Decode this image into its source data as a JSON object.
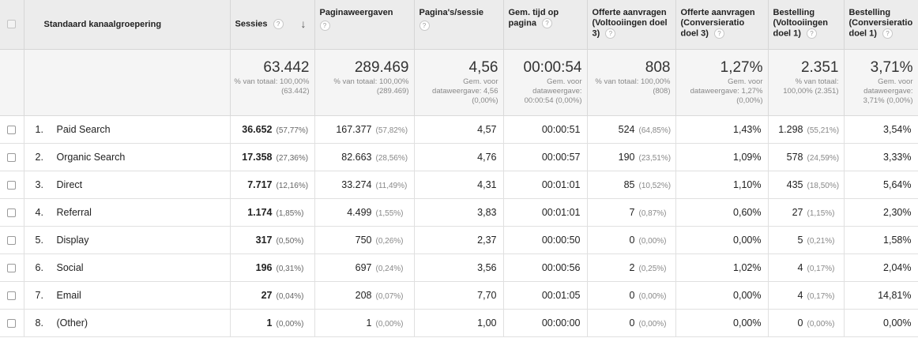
{
  "columns": {
    "name": "Standaard kanaalgroepering",
    "sessies": "Sessies",
    "paginaweergaven": "Paginaweergaven",
    "paginas_sessie": "Pagina's/sessie",
    "tijd": "Gem. tijd op pagina",
    "offerte_voltooiingen": "Offerte aanvragen (Voltooiingen doel 3)",
    "offerte_conversie": "Offerte aanvragen (Conversieratio doel 3)",
    "bestelling_voltooiingen": "Bestelling (Voltooiingen doel 1)",
    "bestelling_conversie": "Bestelling (Conversieratio doel 1)"
  },
  "help_icon": "?",
  "sort_icon": "↓",
  "totals": {
    "sessies": {
      "value": "63.442",
      "sub": "% van totaal: 100,00% (63.442)"
    },
    "paginaweergaven": {
      "value": "289.469",
      "sub": "% van totaal: 100,00% (289.469)"
    },
    "paginas_sessie": {
      "value": "4,56",
      "sub": "Gem. voor dataweergave: 4,56 (0,00%)"
    },
    "tijd": {
      "value": "00:00:54",
      "sub": "Gem. voor dataweergave: 00:00:54 (0,00%)"
    },
    "offerte_voltooiingen": {
      "value": "808",
      "sub": "% van totaal: 100,00% (808)"
    },
    "offerte_conversie": {
      "value": "1,27%",
      "sub": "Gem. voor dataweergave: 1,27% (0,00%)"
    },
    "bestelling_voltooiingen": {
      "value": "2.351",
      "sub": "% van totaal: 100,00% (2.351)"
    },
    "bestelling_conversie": {
      "value": "3,71%",
      "sub": "Gem. voor dataweergave: 3,71% (0,00%)"
    }
  },
  "rows": [
    {
      "num": "1.",
      "name": "Paid Search",
      "sessies": "36.652",
      "sessies_pct": "(57,77%)",
      "pv": "167.377",
      "pv_pct": "(57,82%)",
      "pps": "4,57",
      "tijd": "00:00:51",
      "off": "524",
      "off_pct": "(64,85%)",
      "ofc": "1,43%",
      "best": "1.298",
      "best_pct": "(55,21%)",
      "bc": "3,54%"
    },
    {
      "num": "2.",
      "name": "Organic Search",
      "sessies": "17.358",
      "sessies_pct": "(27,36%)",
      "pv": "82.663",
      "pv_pct": "(28,56%)",
      "pps": "4,76",
      "tijd": "00:00:57",
      "off": "190",
      "off_pct": "(23,51%)",
      "ofc": "1,09%",
      "best": "578",
      "best_pct": "(24,59%)",
      "bc": "3,33%"
    },
    {
      "num": "3.",
      "name": "Direct",
      "sessies": "7.717",
      "sessies_pct": "(12,16%)",
      "pv": "33.274",
      "pv_pct": "(11,49%)",
      "pps": "4,31",
      "tijd": "00:01:01",
      "off": "85",
      "off_pct": "(10,52%)",
      "ofc": "1,10%",
      "best": "435",
      "best_pct": "(18,50%)",
      "bc": "5,64%"
    },
    {
      "num": "4.",
      "name": "Referral",
      "sessies": "1.174",
      "sessies_pct": "(1,85%)",
      "pv": "4.499",
      "pv_pct": "(1,55%)",
      "pps": "3,83",
      "tijd": "00:01:01",
      "off": "7",
      "off_pct": "(0,87%)",
      "ofc": "0,60%",
      "best": "27",
      "best_pct": "(1,15%)",
      "bc": "2,30%"
    },
    {
      "num": "5.",
      "name": "Display",
      "sessies": "317",
      "sessies_pct": "(0,50%)",
      "pv": "750",
      "pv_pct": "(0,26%)",
      "pps": "2,37",
      "tijd": "00:00:50",
      "off": "0",
      "off_pct": "(0,00%)",
      "ofc": "0,00%",
      "best": "5",
      "best_pct": "(0,21%)",
      "bc": "1,58%"
    },
    {
      "num": "6.",
      "name": "Social",
      "sessies": "196",
      "sessies_pct": "(0,31%)",
      "pv": "697",
      "pv_pct": "(0,24%)",
      "pps": "3,56",
      "tijd": "00:00:56",
      "off": "2",
      "off_pct": "(0,25%)",
      "ofc": "1,02%",
      "best": "4",
      "best_pct": "(0,17%)",
      "bc": "2,04%"
    },
    {
      "num": "7.",
      "name": "Email",
      "sessies": "27",
      "sessies_pct": "(0,04%)",
      "pv": "208",
      "pv_pct": "(0,07%)",
      "pps": "7,70",
      "tijd": "00:01:05",
      "off": "0",
      "off_pct": "(0,00%)",
      "ofc": "0,00%",
      "best": "4",
      "best_pct": "(0,17%)",
      "bc": "14,81%"
    },
    {
      "num": "8.",
      "name": "(Other)",
      "sessies": "1",
      "sessies_pct": "(0,00%)",
      "pv": "1",
      "pv_pct": "(0,00%)",
      "pps": "1,00",
      "tijd": "00:00:00",
      "off": "0",
      "off_pct": "(0,00%)",
      "ofc": "0,00%",
      "best": "0",
      "best_pct": "(0,00%)",
      "bc": "0,00%"
    }
  ]
}
